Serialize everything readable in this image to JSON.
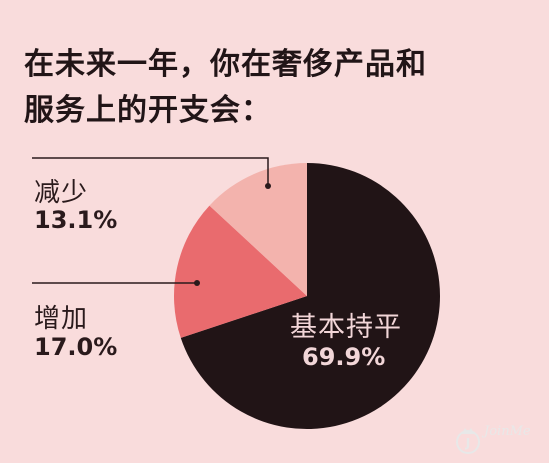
{
  "title": "在未来一年，你在奢侈产品和\n服务上的开支会：",
  "chart_data": {
    "type": "pie",
    "title": "在未来一年，你在奢侈产品和服务上的开支会：",
    "slices": [
      {
        "label": "基本持平",
        "value": 69.9,
        "display": "69.9%",
        "color": "#211416"
      },
      {
        "label": "增加",
        "value": 17.0,
        "display": "17.0%",
        "color": "#e96b6e"
      },
      {
        "label": "减少",
        "value": 13.1,
        "display": "13.1%",
        "color": "#f3b3ad"
      }
    ],
    "start_angle_deg": 0,
    "direction": "clockwise"
  },
  "watermark": {
    "text": "JoinMe",
    "icon": "crown-logo-icon"
  }
}
